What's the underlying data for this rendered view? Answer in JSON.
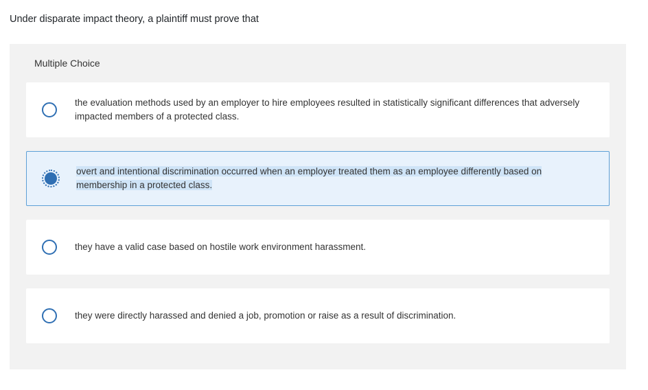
{
  "question": "Under disparate impact theory, a plaintiff must prove that",
  "panel_title": "Multiple Choice",
  "options": [
    {
      "text": "the evaluation methods used by an employer to hire employees resulted in statistically significant differences that adversely impacted members of a protected class.",
      "selected": false
    },
    {
      "text": "overt and intentional discrimination occurred when an employer treated them as an employee differently based on membership in a protected class.",
      "selected": true
    },
    {
      "text": "they have a valid case based on hostile work environment harassment.",
      "selected": false
    },
    {
      "text": "they were directly harassed and denied a job, promotion or raise as a result of discrimination.",
      "selected": false
    }
  ],
  "colors": {
    "panel_bg": "#f2f2f2",
    "option_bg": "#ffffff",
    "selected_bg": "#e8f2fc",
    "selected_border": "#5c9fd6",
    "radio_border": "#2f6fb3",
    "highlight_bg": "#cfe4f7"
  }
}
